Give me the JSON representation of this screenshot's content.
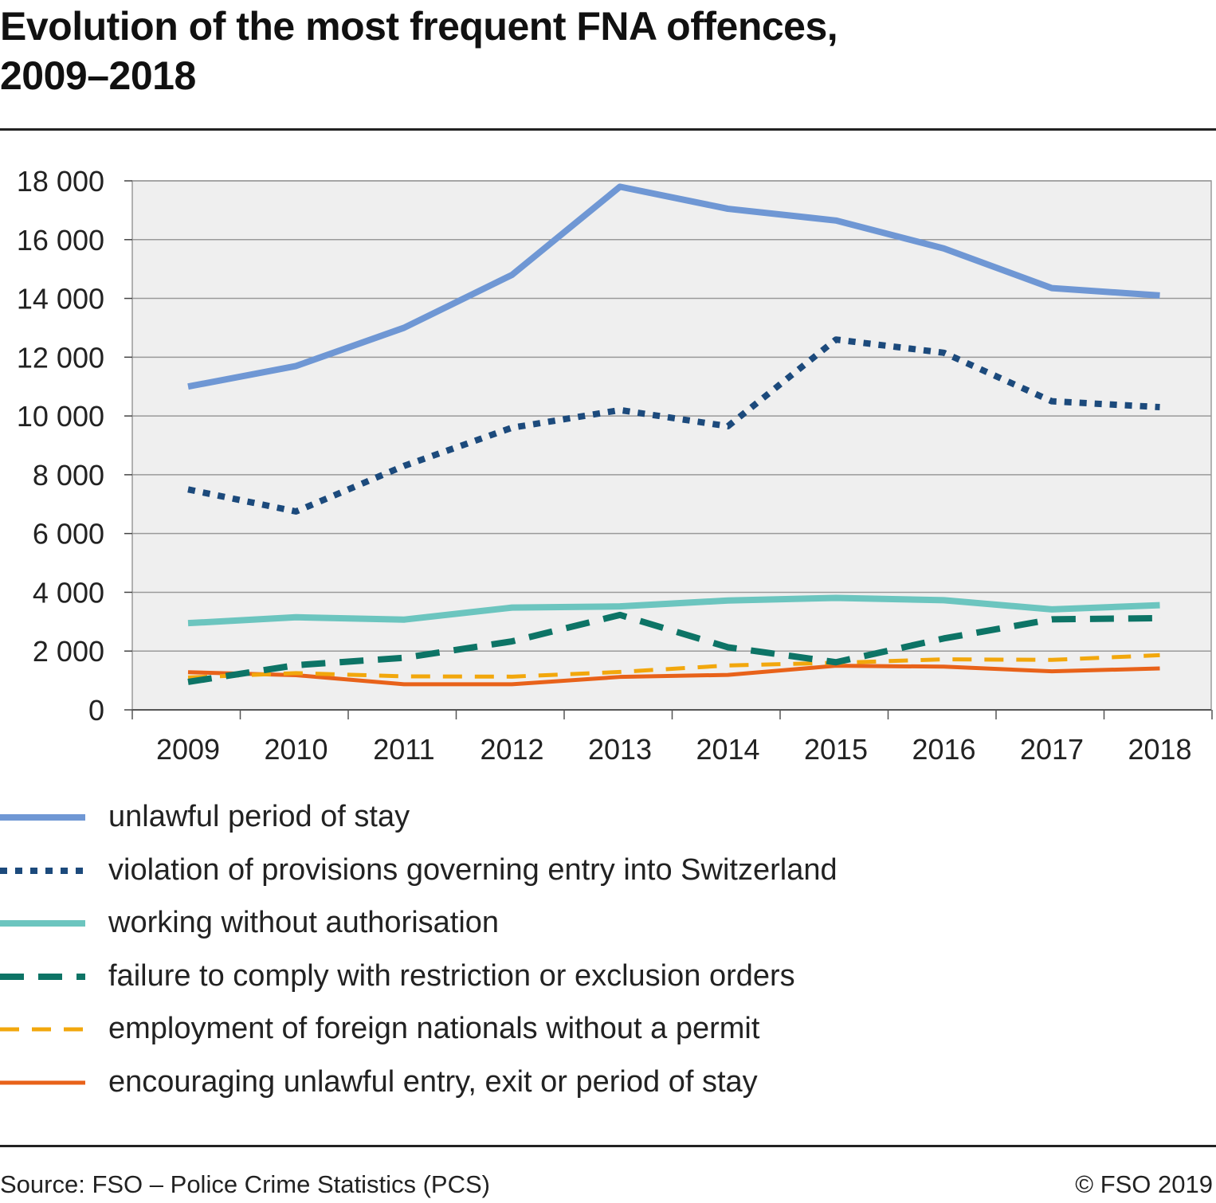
{
  "title_line1": "Evolution of the most frequent FNA offences,",
  "title_line2": "2009–2018",
  "source": "Source: FSO – Police Crime Statistics (PCS)",
  "copyright": "© FSO 2019",
  "chart_data": {
    "type": "line",
    "title": "Evolution of the most frequent FNA offences, 2009–2018",
    "xlabel": "",
    "ylabel": "",
    "x": [
      "2009",
      "2010",
      "2011",
      "2012",
      "2013",
      "2014",
      "2015",
      "2016",
      "2017",
      "2018"
    ],
    "ylim": [
      0,
      18000
    ],
    "yticks": [
      0,
      2000,
      4000,
      6000,
      8000,
      10000,
      12000,
      14000,
      16000,
      18000
    ],
    "ytick_labels": [
      "0",
      "2 000",
      "4 000",
      "6 000",
      "8 000",
      "10 000",
      "12 000",
      "14 000",
      "16 000",
      "18 000"
    ],
    "grid": "horizontal",
    "legend_position": "bottom",
    "plot_background": "#efefef",
    "series": [
      {
        "name": "unlawful period of stay",
        "color": "#6f97d4",
        "style": "solid",
        "values": [
          11000,
          11700,
          13000,
          14800,
          17800,
          17050,
          16650,
          15700,
          14350,
          14100
        ]
      },
      {
        "name": "violation of provisions governing entry into Switzerland",
        "color": "#1c4a7c",
        "style": "dotted",
        "values": [
          7500,
          6750,
          8300,
          9600,
          10200,
          9650,
          12600,
          12150,
          10500,
          10300
        ]
      },
      {
        "name": "working without authorisation",
        "color": "#6cc5bf",
        "style": "solid",
        "values": [
          2950,
          3150,
          3070,
          3480,
          3520,
          3720,
          3810,
          3730,
          3420,
          3560
        ]
      },
      {
        "name": "failure to comply with restriction or exclusion orders",
        "color": "#0d7466",
        "style": "dashed",
        "values": [
          950,
          1520,
          1770,
          2330,
          3230,
          2130,
          1620,
          2430,
          3080,
          3120
        ]
      },
      {
        "name": "employment of foreign nationals without a permit",
        "color": "#f2a70c",
        "style": "dashed-thin",
        "values": [
          1100,
          1250,
          1140,
          1130,
          1290,
          1510,
          1600,
          1720,
          1700,
          1860
        ]
      },
      {
        "name": "encouraging unlawful entry, exit or period of stay",
        "color": "#e8621a",
        "style": "solid-thin",
        "values": [
          1280,
          1180,
          870,
          870,
          1120,
          1190,
          1500,
          1470,
          1310,
          1410
        ]
      }
    ]
  }
}
